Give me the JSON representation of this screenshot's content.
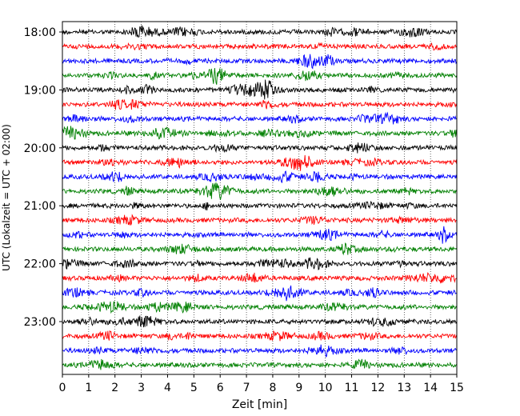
{
  "chart_data": {
    "type": "line",
    "title": "",
    "xlabel": "Zeit  [min]",
    "ylabel": "UTC (Lokalzeit = UTC + 02:00)",
    "xlim": [
      0,
      15
    ],
    "x_ticks": [
      "0",
      "1",
      "2",
      "3",
      "4",
      "5",
      "6",
      "7",
      "8",
      "9",
      "10",
      "11",
      "12",
      "13",
      "14",
      "15"
    ],
    "grid": "vertical dotted lines at each minute",
    "row_interval_minutes": 15,
    "y_ticks": [
      "18:00",
      "19:00",
      "20:00",
      "21:00",
      "22:00",
      "23:00"
    ],
    "series_colors": [
      "#000000",
      "#ff0000",
      "#0000ff",
      "#008000"
    ],
    "series": [
      {
        "start": "18:00"
      },
      {
        "start": "18:15"
      },
      {
        "start": "18:30"
      },
      {
        "start": "18:45"
      },
      {
        "start": "19:00"
      },
      {
        "start": "19:15"
      },
      {
        "start": "19:30"
      },
      {
        "start": "19:45"
      },
      {
        "start": "20:00"
      },
      {
        "start": "20:15"
      },
      {
        "start": "20:30"
      },
      {
        "start": "20:45"
      },
      {
        "start": "21:00"
      },
      {
        "start": "21:15"
      },
      {
        "start": "21:30"
      },
      {
        "start": "21:45"
      },
      {
        "start": "22:00"
      },
      {
        "start": "22:15"
      },
      {
        "start": "22:30"
      },
      {
        "start": "22:45"
      },
      {
        "start": "23:00"
      },
      {
        "start": "23:15"
      },
      {
        "start": "23:30"
      },
      {
        "start": "23:45"
      }
    ]
  }
}
